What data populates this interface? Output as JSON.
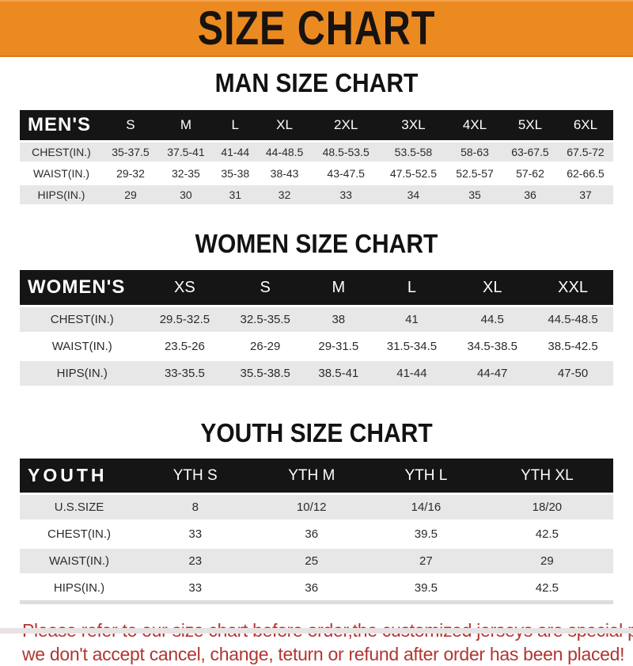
{
  "banner": {
    "title": "SIZE CHART",
    "bg_color": "#EC8A22",
    "text_color": "#171310"
  },
  "sections": [
    {
      "heading": "MAN SIZE CHART",
      "table": {
        "label": "MEN'S",
        "columns": [
          "S",
          "M",
          "L",
          "XL",
          "2XL",
          "3XL",
          "4XL",
          "5XL",
          "6XL"
        ],
        "rows": [
          {
            "label": "CHEST(IN.)",
            "values": [
              "35-37.5",
              "37.5-41",
              "41-44",
              "44-48.5",
              "48.5-53.5",
              "53.5-58",
              "58-63",
              "63-67.5",
              "67.5-72"
            ]
          },
          {
            "label": "WAIST(IN.)",
            "values": [
              "29-32",
              "32-35",
              "35-38",
              "38-43",
              "43-47.5",
              "47.5-52.5",
              "52.5-57",
              "57-62",
              "62-66.5"
            ]
          },
          {
            "label": "HIPS(IN.)",
            "values": [
              "29",
              "30",
              "31",
              "32",
              "33",
              "34",
              "35",
              "36",
              "37"
            ]
          }
        ]
      }
    },
    {
      "heading": "WOMEN SIZE CHART",
      "table": {
        "label": "WOMEN'S",
        "columns": [
          "XS",
          "S",
          "M",
          "L",
          "XL",
          "XXL"
        ],
        "rows": [
          {
            "label": "CHEST(IN.)",
            "values": [
              "29.5-32.5",
              "32.5-35.5",
              "38",
              "41",
              "44.5",
              "44.5-48.5"
            ]
          },
          {
            "label": "WAIST(IN.)",
            "values": [
              "23.5-26",
              "26-29",
              "29-31.5",
              "31.5-34.5",
              "34.5-38.5",
              "38.5-42.5"
            ]
          },
          {
            "label": "HIPS(IN.)",
            "values": [
              "33-35.5",
              "35.5-38.5",
              "38.5-41",
              "41-44",
              "44-47",
              "47-50"
            ]
          }
        ]
      }
    },
    {
      "heading": "YOUTH SIZE CHART",
      "table": {
        "label": "YOUTH",
        "columns": [
          "YTH S",
          "YTH M",
          "YTH L",
          "YTH XL"
        ],
        "rows": [
          {
            "label": "U.S.SIZE",
            "values": [
              "8",
              "10/12",
              "14/16",
              "18/20"
            ]
          },
          {
            "label": "CHEST(IN.)",
            "values": [
              "33",
              "36",
              "39.5",
              "42.5"
            ]
          },
          {
            "label": "WAIST(IN.)",
            "values": [
              "23",
              "25",
              "27",
              "29"
            ]
          },
          {
            "label": "HIPS(IN.)",
            "values": [
              "33",
              "36",
              "39.5",
              "42.5"
            ]
          }
        ]
      }
    }
  ],
  "footer": {
    "color": "#B23530",
    "lines": [
      "Please refer to our size chart before order,the customized jerseys are special products,",
      "we don't accept cancel, change, teturn or refund after order has been placed!"
    ]
  }
}
